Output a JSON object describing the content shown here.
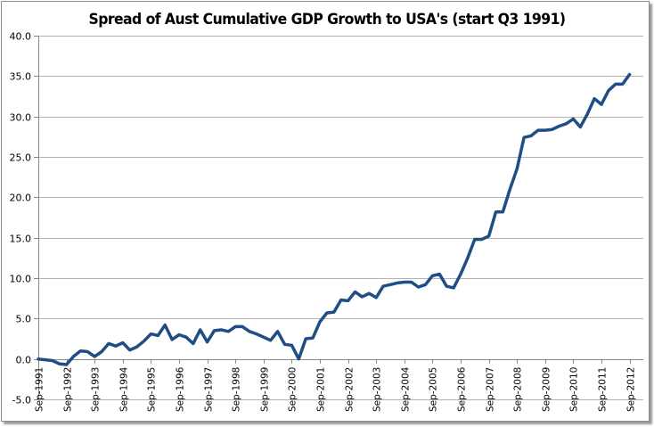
{
  "chart_data": {
    "type": "line",
    "title": "Spread of Aust Cumulative GDP Growth to USA's (start Q3 1991)",
    "xlabel": "",
    "ylabel": "",
    "ylim": [
      -5,
      40
    ],
    "yticks": [
      "40.0",
      "35.0",
      "30.0",
      "25.0",
      "20.0",
      "15.0",
      "10.0",
      "5.0",
      "0.0",
      "-5.0"
    ],
    "ytick_values": [
      40,
      35,
      30,
      25,
      20,
      15,
      10,
      5,
      0,
      -5
    ],
    "xticks": [
      "Sep-1991",
      "Sep-1992",
      "Sep-1993",
      "Sep-1994",
      "Sep-1995",
      "Sep-1996",
      "Sep-1997",
      "Sep-1998",
      "Sep-1999",
      "Sep-2000",
      "Sep-2001",
      "Sep-2002",
      "Sep-2003",
      "Sep-2004",
      "Sep-2005",
      "Sep-2006",
      "Sep-2007",
      "Sep-2008",
      "Sep-2009",
      "Sep-2010",
      "Sep-2011",
      "Sep-2012"
    ],
    "grid": "horizontal",
    "legend": "none",
    "series": [
      {
        "name": "Spread",
        "color": "#1f4e85",
        "x_start": "Sep-1991",
        "frequency": "quarterly",
        "values": [
          0.0,
          -0.1,
          -0.2,
          -0.6,
          -0.7,
          0.3,
          1.0,
          0.9,
          0.3,
          0.9,
          1.9,
          1.6,
          2.0,
          1.1,
          1.5,
          2.2,
          3.1,
          2.9,
          4.2,
          2.4,
          3.0,
          2.7,
          1.9,
          3.6,
          2.1,
          3.5,
          3.6,
          3.4,
          4.0,
          4.0,
          3.4,
          3.1,
          2.7,
          2.3,
          3.4,
          1.8,
          1.7,
          0.0,
          2.5,
          2.6,
          4.6,
          5.7,
          5.8,
          7.3,
          7.2,
          8.3,
          7.7,
          8.1,
          7.6,
          9.0,
          9.2,
          9.4,
          9.5,
          9.5,
          8.9,
          9.2,
          10.3,
          10.5,
          9.0,
          8.8,
          10.5,
          12.5,
          14.8,
          14.8,
          15.2,
          18.2,
          18.2,
          21.0,
          23.5,
          27.4,
          27.6,
          28.3,
          28.3,
          28.4,
          28.8,
          29.1,
          29.7,
          28.7,
          30.3,
          32.2,
          31.5,
          33.2,
          34.0,
          34.0,
          35.2
        ]
      }
    ]
  }
}
